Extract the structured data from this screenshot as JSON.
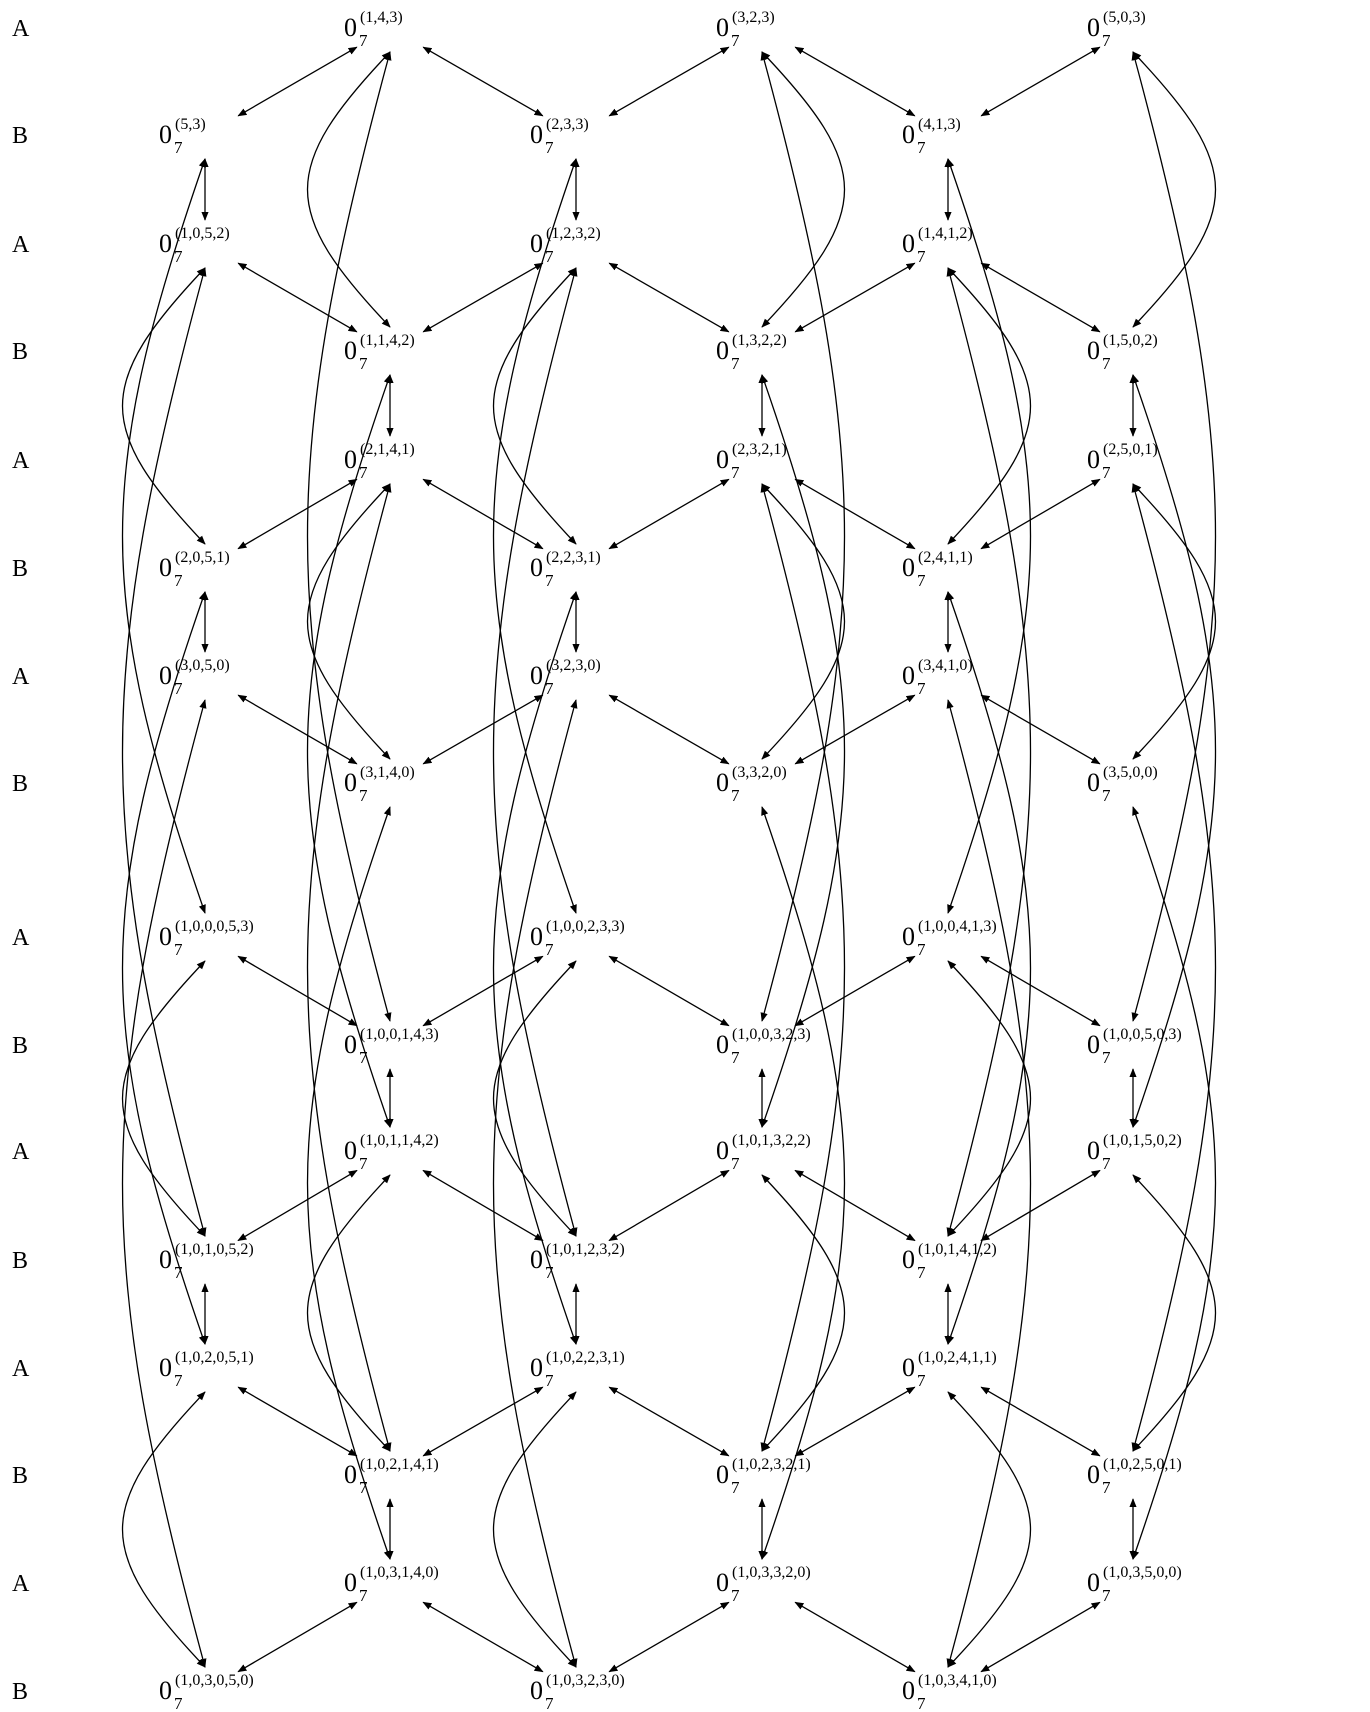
{
  "row_labels": [
    "A",
    "B",
    "A",
    "B",
    "A",
    "B",
    "A",
    "B",
    "A",
    "B",
    "A",
    "B",
    "A",
    "B",
    "A",
    "B"
  ],
  "node_base": "0",
  "node_sub": "7",
  "nodes": [
    {
      "id": "n143",
      "sup": "(1,4,3)"
    },
    {
      "id": "n323",
      "sup": "(3,2,3)"
    },
    {
      "id": "n503",
      "sup": "(5,0,3)"
    },
    {
      "id": "n53",
      "sup": "(5,3)"
    },
    {
      "id": "n233",
      "sup": "(2,3,3)"
    },
    {
      "id": "n413",
      "sup": "(4,1,3)"
    },
    {
      "id": "n1052",
      "sup": "(1,0,5,2)"
    },
    {
      "id": "n1232",
      "sup": "(1,2,3,2)"
    },
    {
      "id": "n1412",
      "sup": "(1,4,1,2)"
    },
    {
      "id": "n1142",
      "sup": "(1,1,4,2)"
    },
    {
      "id": "n1322",
      "sup": "(1,3,2,2)"
    },
    {
      "id": "n1502",
      "sup": "(1,5,0,2)"
    },
    {
      "id": "n2141",
      "sup": "(2,1,4,1)"
    },
    {
      "id": "n2321",
      "sup": "(2,3,2,1)"
    },
    {
      "id": "n2501",
      "sup": "(2,5,0,1)"
    },
    {
      "id": "n2051",
      "sup": "(2,0,5,1)"
    },
    {
      "id": "n2231",
      "sup": "(2,2,3,1)"
    },
    {
      "id": "n2411",
      "sup": "(2,4,1,1)"
    },
    {
      "id": "n3050",
      "sup": "(3,0,5,0)"
    },
    {
      "id": "n3230",
      "sup": "(3,2,3,0)"
    },
    {
      "id": "n3410",
      "sup": "(3,4,1,0)"
    },
    {
      "id": "n3140",
      "sup": "(3,1,4,0)"
    },
    {
      "id": "n3320",
      "sup": "(3,3,2,0)"
    },
    {
      "id": "n3500",
      "sup": "(3,5,0,0)"
    },
    {
      "id": "m100053",
      "sup": "(1,0,0,0,5,3)"
    },
    {
      "id": "m100233",
      "sup": "(1,0,0,2,3,3)"
    },
    {
      "id": "m100413",
      "sup": "(1,0,0,4,1,3)"
    },
    {
      "id": "m100143",
      "sup": "(1,0,0,1,4,3)"
    },
    {
      "id": "m100323",
      "sup": "(1,0,0,3,2,3)"
    },
    {
      "id": "m100503",
      "sup": "(1,0,0,5,0,3)"
    },
    {
      "id": "m101142",
      "sup": "(1,0,1,1,4,2)"
    },
    {
      "id": "m101322",
      "sup": "(1,0,1,3,2,2)"
    },
    {
      "id": "m101502",
      "sup": "(1,0,1,5,0,2)"
    },
    {
      "id": "m101052",
      "sup": "(1,0,1,0,5,2)"
    },
    {
      "id": "m101232",
      "sup": "(1,0,1,2,3,2)"
    },
    {
      "id": "m101412",
      "sup": "(1,0,1,4,1,2)"
    },
    {
      "id": "m102051",
      "sup": "(1,0,2,0,5,1)"
    },
    {
      "id": "m102231",
      "sup": "(1,0,2,2,3,1)"
    },
    {
      "id": "m102411",
      "sup": "(1,0,2,4,1,1)"
    },
    {
      "id": "m102141",
      "sup": "(1,0,2,1,4,1)"
    },
    {
      "id": "m102321",
      "sup": "(1,0,2,3,2,1)"
    },
    {
      "id": "m102501",
      "sup": "(1,0,2,5,0,1)"
    },
    {
      "id": "m103140",
      "sup": "(1,0,3,1,4,0)"
    },
    {
      "id": "m103320",
      "sup": "(1,0,3,3,2,0)"
    },
    {
      "id": "m103500",
      "sup": "(1,0,3,5,0,0)"
    },
    {
      "id": "m103050",
      "sup": "(1,0,3,0,5,0)"
    },
    {
      "id": "m103230",
      "sup": "(1,0,3,2,3,0)"
    },
    {
      "id": "m103410",
      "sup": "(1,0,3,4,1,0)"
    }
  ],
  "edges": [
    [
      "n143",
      "n53"
    ],
    [
      "n143",
      "n233"
    ],
    [
      "n323",
      "n233"
    ],
    [
      "n323",
      "n413"
    ],
    [
      "n503",
      "n413"
    ],
    [
      "n53",
      "n1052"
    ],
    [
      "n233",
      "n1232"
    ],
    [
      "n413",
      "n1412"
    ],
    [
      "n143",
      "n1142"
    ],
    [
      "n323",
      "n1322"
    ],
    [
      "n503",
      "n1502"
    ],
    [
      "n1052",
      "n1142"
    ],
    [
      "n1232",
      "n1142"
    ],
    [
      "n1232",
      "n1322"
    ],
    [
      "n1412",
      "n1322"
    ],
    [
      "n1412",
      "n1502"
    ],
    [
      "n1142",
      "n2141"
    ],
    [
      "n1322",
      "n2321"
    ],
    [
      "n1502",
      "n2501"
    ],
    [
      "n1052",
      "n2051"
    ],
    [
      "n1232",
      "n2231"
    ],
    [
      "n1412",
      "n2411"
    ],
    [
      "n2051",
      "n2141"
    ],
    [
      "n2231",
      "n2141"
    ],
    [
      "n2231",
      "n2321"
    ],
    [
      "n2411",
      "n2321"
    ],
    [
      "n2411",
      "n2501"
    ],
    [
      "n2051",
      "n3050"
    ],
    [
      "n2231",
      "n3230"
    ],
    [
      "n2411",
      "n3410"
    ],
    [
      "n2141",
      "n3140"
    ],
    [
      "n2321",
      "n3320"
    ],
    [
      "n2501",
      "n3500"
    ],
    [
      "n3050",
      "n3140"
    ],
    [
      "n3230",
      "n3140"
    ],
    [
      "n3230",
      "n3320"
    ],
    [
      "n3410",
      "n3320"
    ],
    [
      "n3410",
      "n3500"
    ],
    [
      "m100053",
      "m100143"
    ],
    [
      "m100233",
      "m100143"
    ],
    [
      "m100233",
      "m100323"
    ],
    [
      "m100413",
      "m100323"
    ],
    [
      "m100413",
      "m100503"
    ],
    [
      "m100143",
      "m101142"
    ],
    [
      "m100323",
      "m101322"
    ],
    [
      "m100503",
      "m101502"
    ],
    [
      "m100053",
      "m101052"
    ],
    [
      "m100233",
      "m101232"
    ],
    [
      "m100413",
      "m101412"
    ],
    [
      "m101052",
      "m101142"
    ],
    [
      "m101232",
      "m101142"
    ],
    [
      "m101232",
      "m101322"
    ],
    [
      "m101412",
      "m101322"
    ],
    [
      "m101412",
      "m101502"
    ],
    [
      "m101052",
      "m102051"
    ],
    [
      "m101232",
      "m102231"
    ],
    [
      "m101412",
      "m102411"
    ],
    [
      "m101142",
      "m102141"
    ],
    [
      "m101322",
      "m102321"
    ],
    [
      "m101502",
      "m102501"
    ],
    [
      "m102051",
      "m102141"
    ],
    [
      "m102231",
      "m102141"
    ],
    [
      "m102231",
      "m102321"
    ],
    [
      "m102411",
      "m102321"
    ],
    [
      "m102411",
      "m102501"
    ],
    [
      "m102141",
      "m103140"
    ],
    [
      "m102321",
      "m103320"
    ],
    [
      "m102501",
      "m103500"
    ],
    [
      "m102051",
      "m103050"
    ],
    [
      "m102231",
      "m103230"
    ],
    [
      "m102411",
      "m103410"
    ],
    [
      "m103050",
      "m103140"
    ],
    [
      "m103230",
      "m103140"
    ],
    [
      "m103230",
      "m103320"
    ],
    [
      "m103410",
      "m103320"
    ],
    [
      "m103410",
      "m103500"
    ],
    [
      "n53",
      "m100053"
    ],
    [
      "n233",
      "m100233"
    ],
    [
      "n413",
      "m100413"
    ],
    [
      "n143",
      "m100143"
    ],
    [
      "n323",
      "m100323"
    ],
    [
      "n503",
      "m100503"
    ],
    [
      "n1052",
      "m101052"
    ],
    [
      "n1232",
      "m101232"
    ],
    [
      "n1412",
      "m101412"
    ],
    [
      "n1142",
      "m101142"
    ],
    [
      "n1322",
      "m101322"
    ],
    [
      "n1502",
      "m101502"
    ],
    [
      "n2051",
      "m102051"
    ],
    [
      "n2231",
      "m102231"
    ],
    [
      "n2411",
      "m102411"
    ],
    [
      "n2141",
      "m102141"
    ],
    [
      "n2321",
      "m102321"
    ],
    [
      "n2501",
      "m102501"
    ],
    [
      "n3050",
      "m103050"
    ],
    [
      "n3230",
      "m103230"
    ],
    [
      "n3410",
      "m103410"
    ],
    [
      "n3140",
      "m103140"
    ],
    [
      "n3320",
      "m103320"
    ],
    [
      "n3500",
      "m103500"
    ]
  ]
}
